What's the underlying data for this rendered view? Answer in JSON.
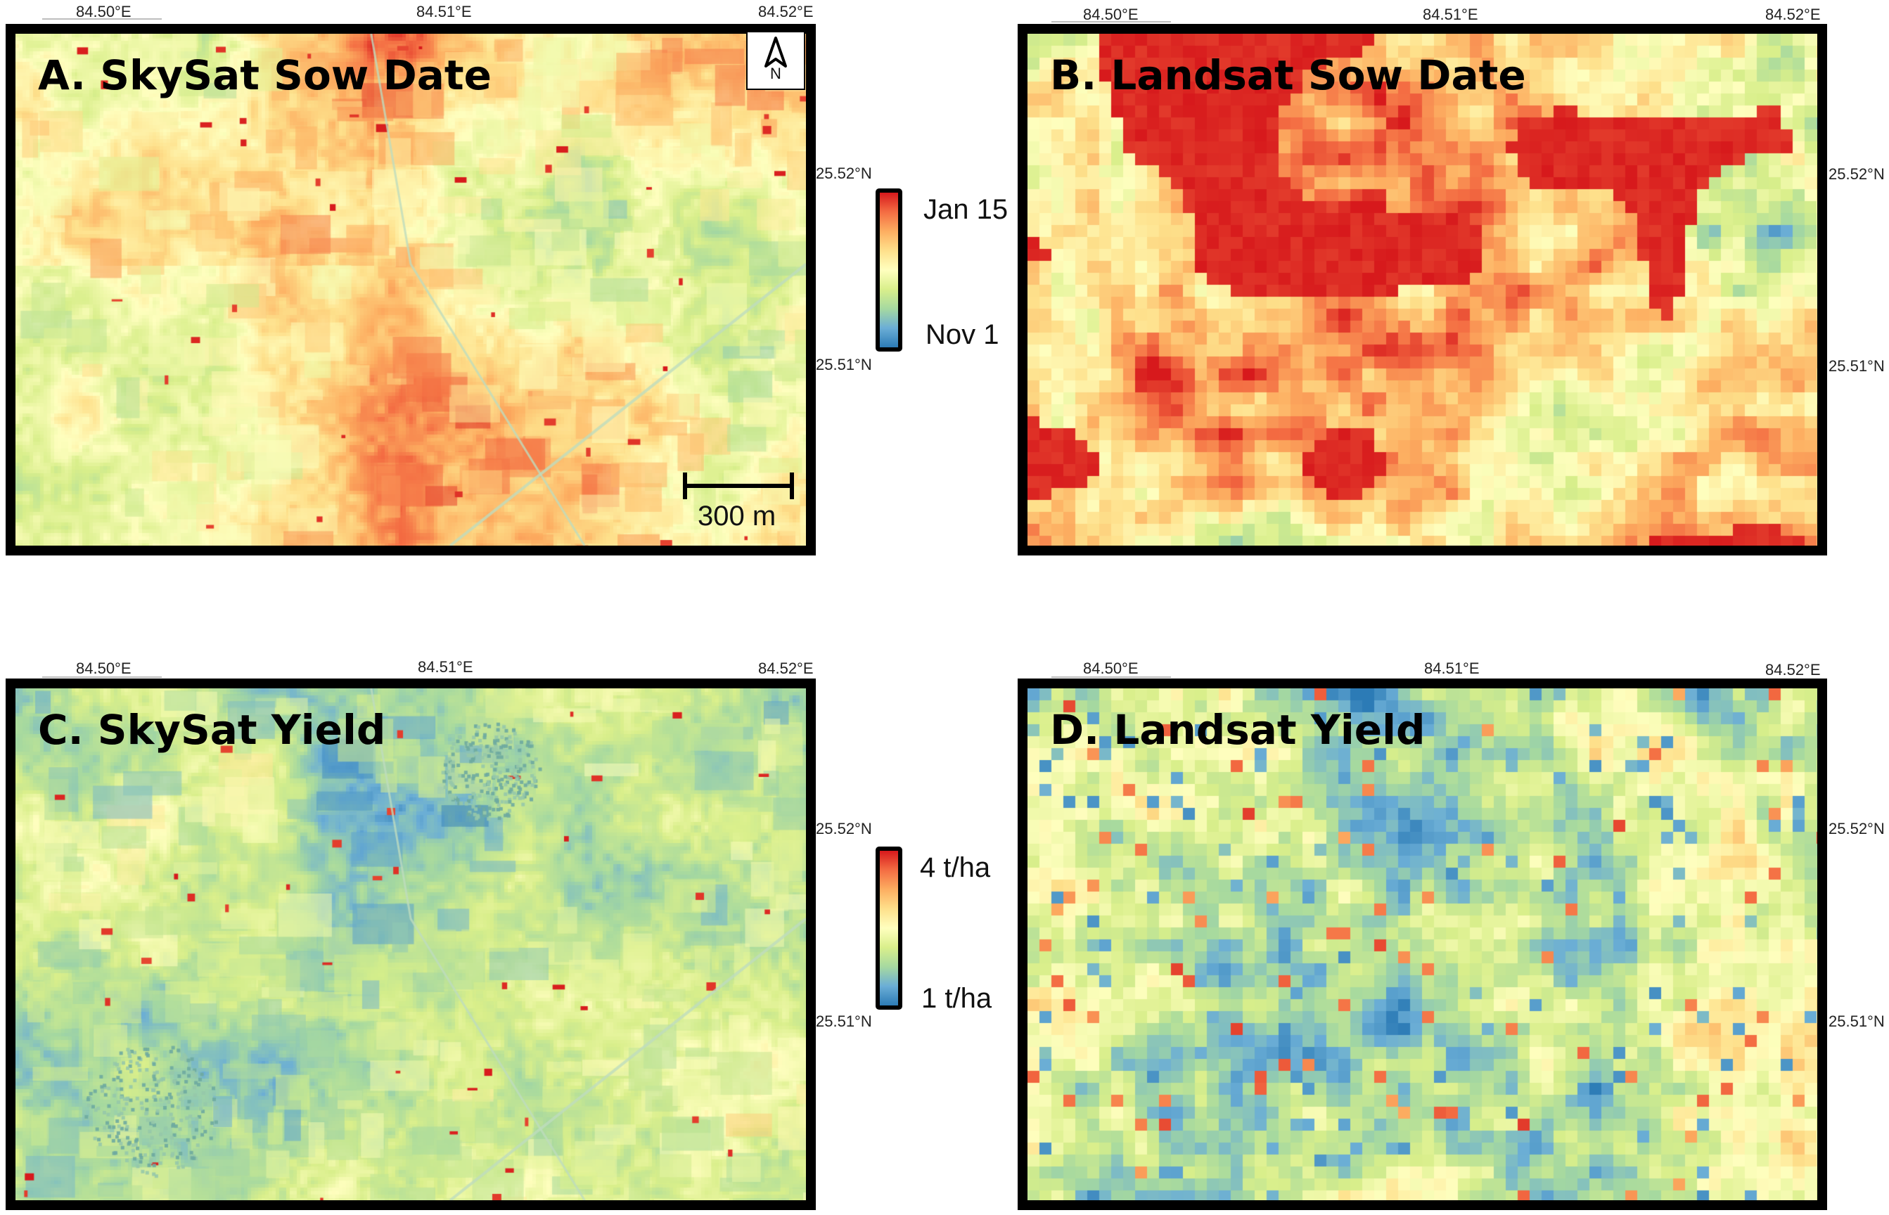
{
  "panels": {
    "a": {
      "title": "A. SkySat Sow Date",
      "scheme": "sow",
      "style": "skysat",
      "seed": 11
    },
    "b": {
      "title": "B. Landsat Sow Date",
      "scheme": "sow",
      "style": "landsat",
      "seed": 23
    },
    "c": {
      "title": "C. SkySat Yield",
      "scheme": "yield",
      "style": "skysat",
      "seed": 37
    },
    "d": {
      "title": "D. Landsat Yield",
      "scheme": "yield",
      "style": "landsat",
      "seed": 41
    }
  },
  "axes": {
    "lon_labels": [
      "84.50°E",
      "84.51°E",
      "84.52°E"
    ],
    "lat_labels": [
      "25.52°N",
      "25.51°N"
    ]
  },
  "legends": {
    "sow_date": {
      "max_label": "Jan 15",
      "min_label": "Nov 1"
    },
    "yield": {
      "max_label": "4 t/ha",
      "min_label": "1 t/ha"
    }
  },
  "north_arrow": {
    "letter": "N"
  },
  "scale_bar": {
    "label": "300 m"
  },
  "colors": {
    "ramp": [
      "#2c7bb6",
      "#6baed6",
      "#a6d9a0",
      "#d9ef8b",
      "#ffffbf",
      "#fee08b",
      "#fdae61",
      "#f46d43",
      "#d7191c"
    ]
  }
}
